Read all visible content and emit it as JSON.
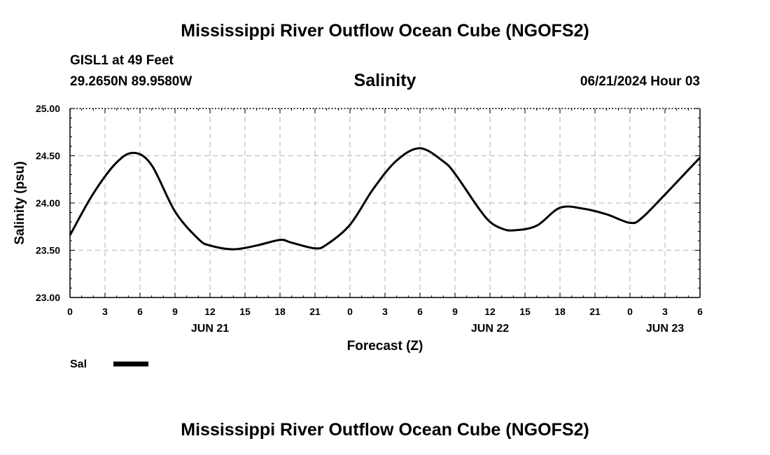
{
  "page": {
    "title_top": "Mississippi River Outflow Ocean Cube (NGOFS2)",
    "title_bottom": "Mississippi River Outflow Ocean Cube (NGOFS2)",
    "station": "GISL1 at 49 Feet",
    "coords": "29.2650N  89.9580W",
    "variable": "Salinity",
    "datetime": "06/21/2024 Hour 03"
  },
  "chart_data": {
    "type": "line",
    "title": "Salinity",
    "xlabel": "Forecast (Z)",
    "ylabel": "Salinity (psu)",
    "xlim": [
      0,
      54
    ],
    "ylim": [
      23.0,
      25.0
    ],
    "grid": true,
    "x_tick_values": [
      0,
      3,
      6,
      9,
      12,
      15,
      18,
      21,
      24,
      27,
      30,
      33,
      36,
      39,
      42,
      45,
      48,
      51,
      54
    ],
    "x_tick_labels": [
      "0",
      "3",
      "6",
      "9",
      "12",
      "15",
      "18",
      "21",
      "0",
      "3",
      "6",
      "9",
      "12",
      "15",
      "18",
      "21",
      "0",
      "3",
      "6"
    ],
    "day_labels": [
      {
        "x": 12,
        "label": "JUN 21"
      },
      {
        "x": 36,
        "label": "JUN 22"
      },
      {
        "x": 51,
        "label": "JUN 23"
      }
    ],
    "y_ticks": [
      23.0,
      23.5,
      24.0,
      24.5,
      25.0
    ],
    "y_tick_labels": [
      "23.00",
      "23.50",
      "24.00",
      "24.50",
      "25.00"
    ],
    "legend": {
      "position": "bottom-left",
      "label": "Sal"
    },
    "series": [
      {
        "name": "Sal",
        "x": [
          0,
          2,
          4,
          5.5,
          7,
          9,
          11,
          12,
          14,
          16,
          18,
          19,
          21,
          22,
          24,
          26,
          28,
          30,
          32,
          33,
          35,
          36,
          37,
          38,
          40,
          42,
          44,
          46,
          48,
          49,
          51,
          53,
          54
        ],
        "values": [
          23.66,
          24.1,
          24.43,
          24.53,
          24.4,
          23.91,
          23.62,
          23.55,
          23.51,
          23.55,
          23.61,
          23.58,
          23.52,
          23.56,
          23.77,
          24.15,
          24.45,
          24.58,
          24.44,
          24.31,
          23.95,
          23.8,
          23.73,
          23.71,
          23.76,
          23.95,
          23.94,
          23.88,
          23.79,
          23.84,
          24.09,
          24.35,
          24.48
        ]
      }
    ]
  }
}
